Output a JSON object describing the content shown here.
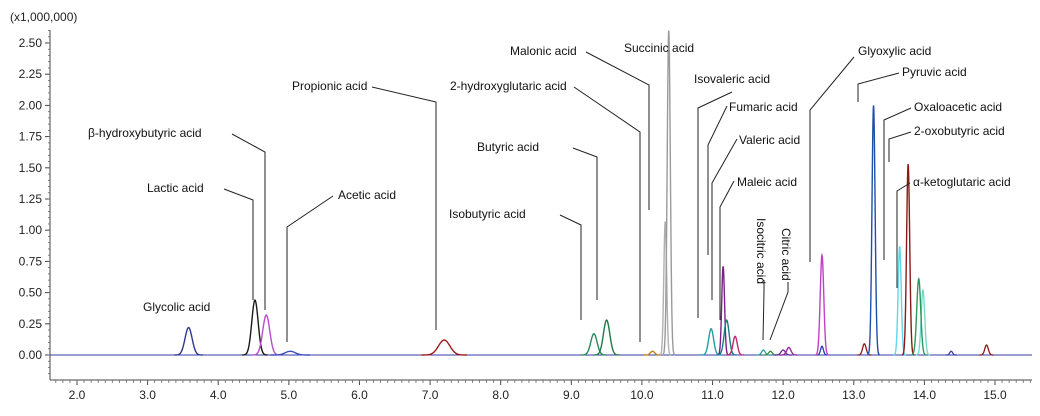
{
  "chart_data": {
    "type": "line",
    "title": "",
    "xlabel": "",
    "ylabel": "",
    "y_multiplier_label": "(x1,000,000)",
    "xlim": [
      1.6,
      15.8
    ],
    "ylim": [
      -0.2,
      2.65
    ],
    "x_ticks": [
      2.0,
      3.0,
      4.0,
      5.0,
      6.0,
      7.0,
      8.0,
      9.0,
      10.0,
      11.0,
      12.0,
      13.0,
      14.0,
      15.0
    ],
    "x_tick_labels": [
      "2.0",
      "3.0",
      "4.0",
      "5.0",
      "6.0",
      "7.0",
      "8.0",
      "9.0",
      "10.0",
      "11.0",
      "12.0",
      "13.0",
      "14.0",
      "15.0"
    ],
    "y_ticks": [
      0.0,
      0.25,
      0.5,
      0.75,
      1.0,
      1.25,
      1.5,
      1.75,
      2.0,
      2.25,
      2.5
    ],
    "y_tick_labels": [
      "0.00",
      "0.25",
      "0.50",
      "0.75",
      "1.00",
      "1.25",
      "1.50",
      "1.75",
      "2.00",
      "2.25",
      "2.50"
    ],
    "grid": false,
    "baseline_color": "#3a3aa8",
    "series": [
      {
        "label": "Glycolic acid",
        "x": 3.58,
        "height": 0.22,
        "width": 0.05,
        "color": "#2b3a8a"
      },
      {
        "label": "Lactic acid",
        "x": 4.52,
        "height": 0.44,
        "width": 0.045,
        "color": "#1a1a1a"
      },
      {
        "label": "β-hydroxybutyric acid",
        "x": 4.68,
        "height": 0.32,
        "width": 0.05,
        "color": "#b64fc8"
      },
      {
        "label": "Acetic acid",
        "x": 5.02,
        "height": 0.03,
        "width": 0.07,
        "color": "#3a4fc0"
      },
      {
        "label": "Propionic acid",
        "x": 7.2,
        "height": 0.12,
        "width": 0.08,
        "color": "#a01818"
      },
      {
        "label": "Isobutyric acid",
        "x": 9.32,
        "height": 0.17,
        "width": 0.045,
        "color": "#2a8a5a"
      },
      {
        "label": "Butyric acid",
        "x": 9.5,
        "height": 0.28,
        "width": 0.045,
        "color": "#1f7a4a"
      },
      {
        "label": "2-hydroxyglutaric acid",
        "x": 10.15,
        "height": 0.03,
        "width": 0.03,
        "color": "#c08020"
      },
      {
        "label": "Malonic acid",
        "x": 10.33,
        "height": 1.07,
        "width": 0.02,
        "color": "#b0b0b0"
      },
      {
        "label": "Succinic acid",
        "x": 10.38,
        "height": 2.6,
        "width": 0.022,
        "color": "#9a9a9a"
      },
      {
        "label": "Isovaleric acid",
        "x": 10.98,
        "height": 0.21,
        "width": 0.035,
        "color": "#20a0a0"
      },
      {
        "label": "Fumaric acid",
        "x": 11.15,
        "height": 0.71,
        "width": 0.02,
        "color": "#7a1f8a"
      },
      {
        "label": "Valeric acid",
        "x": 11.2,
        "height": 0.28,
        "width": 0.035,
        "color": "#1a7a8a"
      },
      {
        "label": "Maleic acid",
        "x": 11.32,
        "height": 0.15,
        "width": 0.03,
        "color": "#c02a6a"
      },
      {
        "label": "Isocitric acid",
        "x": 12.0,
        "height": 0.04,
        "width": 0.03,
        "color": "#6a3aa0"
      },
      {
        "label": "Citric acid",
        "x": 12.08,
        "height": 0.06,
        "width": 0.03,
        "color": "#9a2a9a"
      },
      {
        "label": "Glyoxylic acid",
        "x": 12.55,
        "height": 0.8,
        "width": 0.025,
        "color": "#c040c8"
      },
      {
        "label": "Pyruvic acid",
        "x": 13.28,
        "height": 2.0,
        "width": 0.022,
        "color": "#1f4fa8"
      },
      {
        "label": "Oxaloacetic acid",
        "x": 13.65,
        "height": 0.87,
        "width": 0.022,
        "color": "#60d8e8"
      },
      {
        "label": "2-oxobutyric acid",
        "x": 13.77,
        "height": 1.53,
        "width": 0.022,
        "color": "#8a1a1a"
      },
      {
        "label": "α-ketoglutaric acid",
        "x": 13.92,
        "height": 0.61,
        "width": 0.028,
        "color": "#2a9a5a"
      }
    ],
    "minor_peaks": [
      {
        "x": 11.72,
        "height": 0.04,
        "width": 0.025,
        "color": "#2a9a9a"
      },
      {
        "x": 11.82,
        "height": 0.03,
        "width": 0.025,
        "color": "#3a8a3a"
      },
      {
        "x": 12.55,
        "height": 0.07,
        "width": 0.02,
        "color": "#2a3aa8"
      },
      {
        "x": 13.15,
        "height": 0.09,
        "width": 0.025,
        "color": "#8a1a1a"
      },
      {
        "x": 13.98,
        "height": 0.52,
        "width": 0.025,
        "color": "#70d8c8"
      },
      {
        "x": 14.38,
        "height": 0.03,
        "width": 0.02,
        "color": "#3a3aa8"
      },
      {
        "x": 14.88,
        "height": 0.08,
        "width": 0.025,
        "color": "#8a1a1a"
      }
    ]
  }
}
